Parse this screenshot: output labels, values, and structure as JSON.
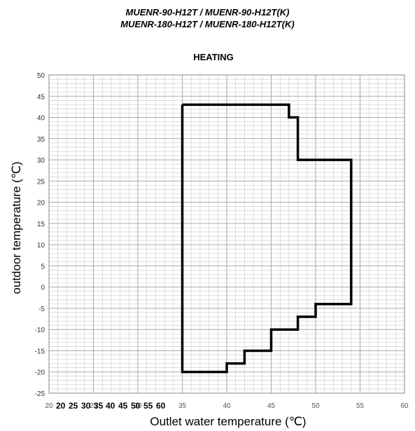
{
  "header": {
    "model_line_1": "MUENR-90-H12T / MUENR-90-H12T(K)",
    "model_line_2": "MUENR-180-H12T / MUENR-180-H12T(K)"
  },
  "chart_data": {
    "type": "line",
    "title": "HEATING",
    "xlabel": "Outlet water  temperature (℃)",
    "ylabel": "outdoor temperature (℃)",
    "xlim": [
      20,
      60
    ],
    "ylim": [
      -25,
      50
    ],
    "x_ticks": [
      "20",
      "25",
      "30",
      "35",
      "40",
      "45",
      "50",
      "55",
      "60"
    ],
    "y_ticks": [
      "50",
      "45",
      "40",
      "35",
      "30",
      "25",
      "20",
      "15",
      "10",
      "5",
      "0",
      "-5",
      "-10",
      "-15",
      "-20",
      "-25"
    ],
    "overlay_tick_labels": [
      "20",
      "25",
      "30",
      "35",
      "40",
      "45",
      "50",
      "55",
      "60"
    ],
    "grid": true,
    "line_color": "#000000",
    "grid_color": "#c8c8c8",
    "series": [
      {
        "points": [
          [
            35,
            43
          ],
          [
            47,
            43
          ],
          [
            47,
            40
          ],
          [
            48,
            40
          ],
          [
            48,
            30
          ],
          [
            54,
            30
          ],
          [
            54,
            -4
          ],
          [
            50,
            -4
          ],
          [
            50,
            -7
          ],
          [
            48,
            -7
          ],
          [
            48,
            -10
          ],
          [
            45,
            -10
          ],
          [
            45,
            -15
          ],
          [
            42,
            -15
          ],
          [
            42,
            -18
          ],
          [
            40,
            -18
          ],
          [
            40,
            -20
          ],
          [
            35,
            -20
          ],
          [
            35,
            43
          ]
        ]
      }
    ]
  }
}
